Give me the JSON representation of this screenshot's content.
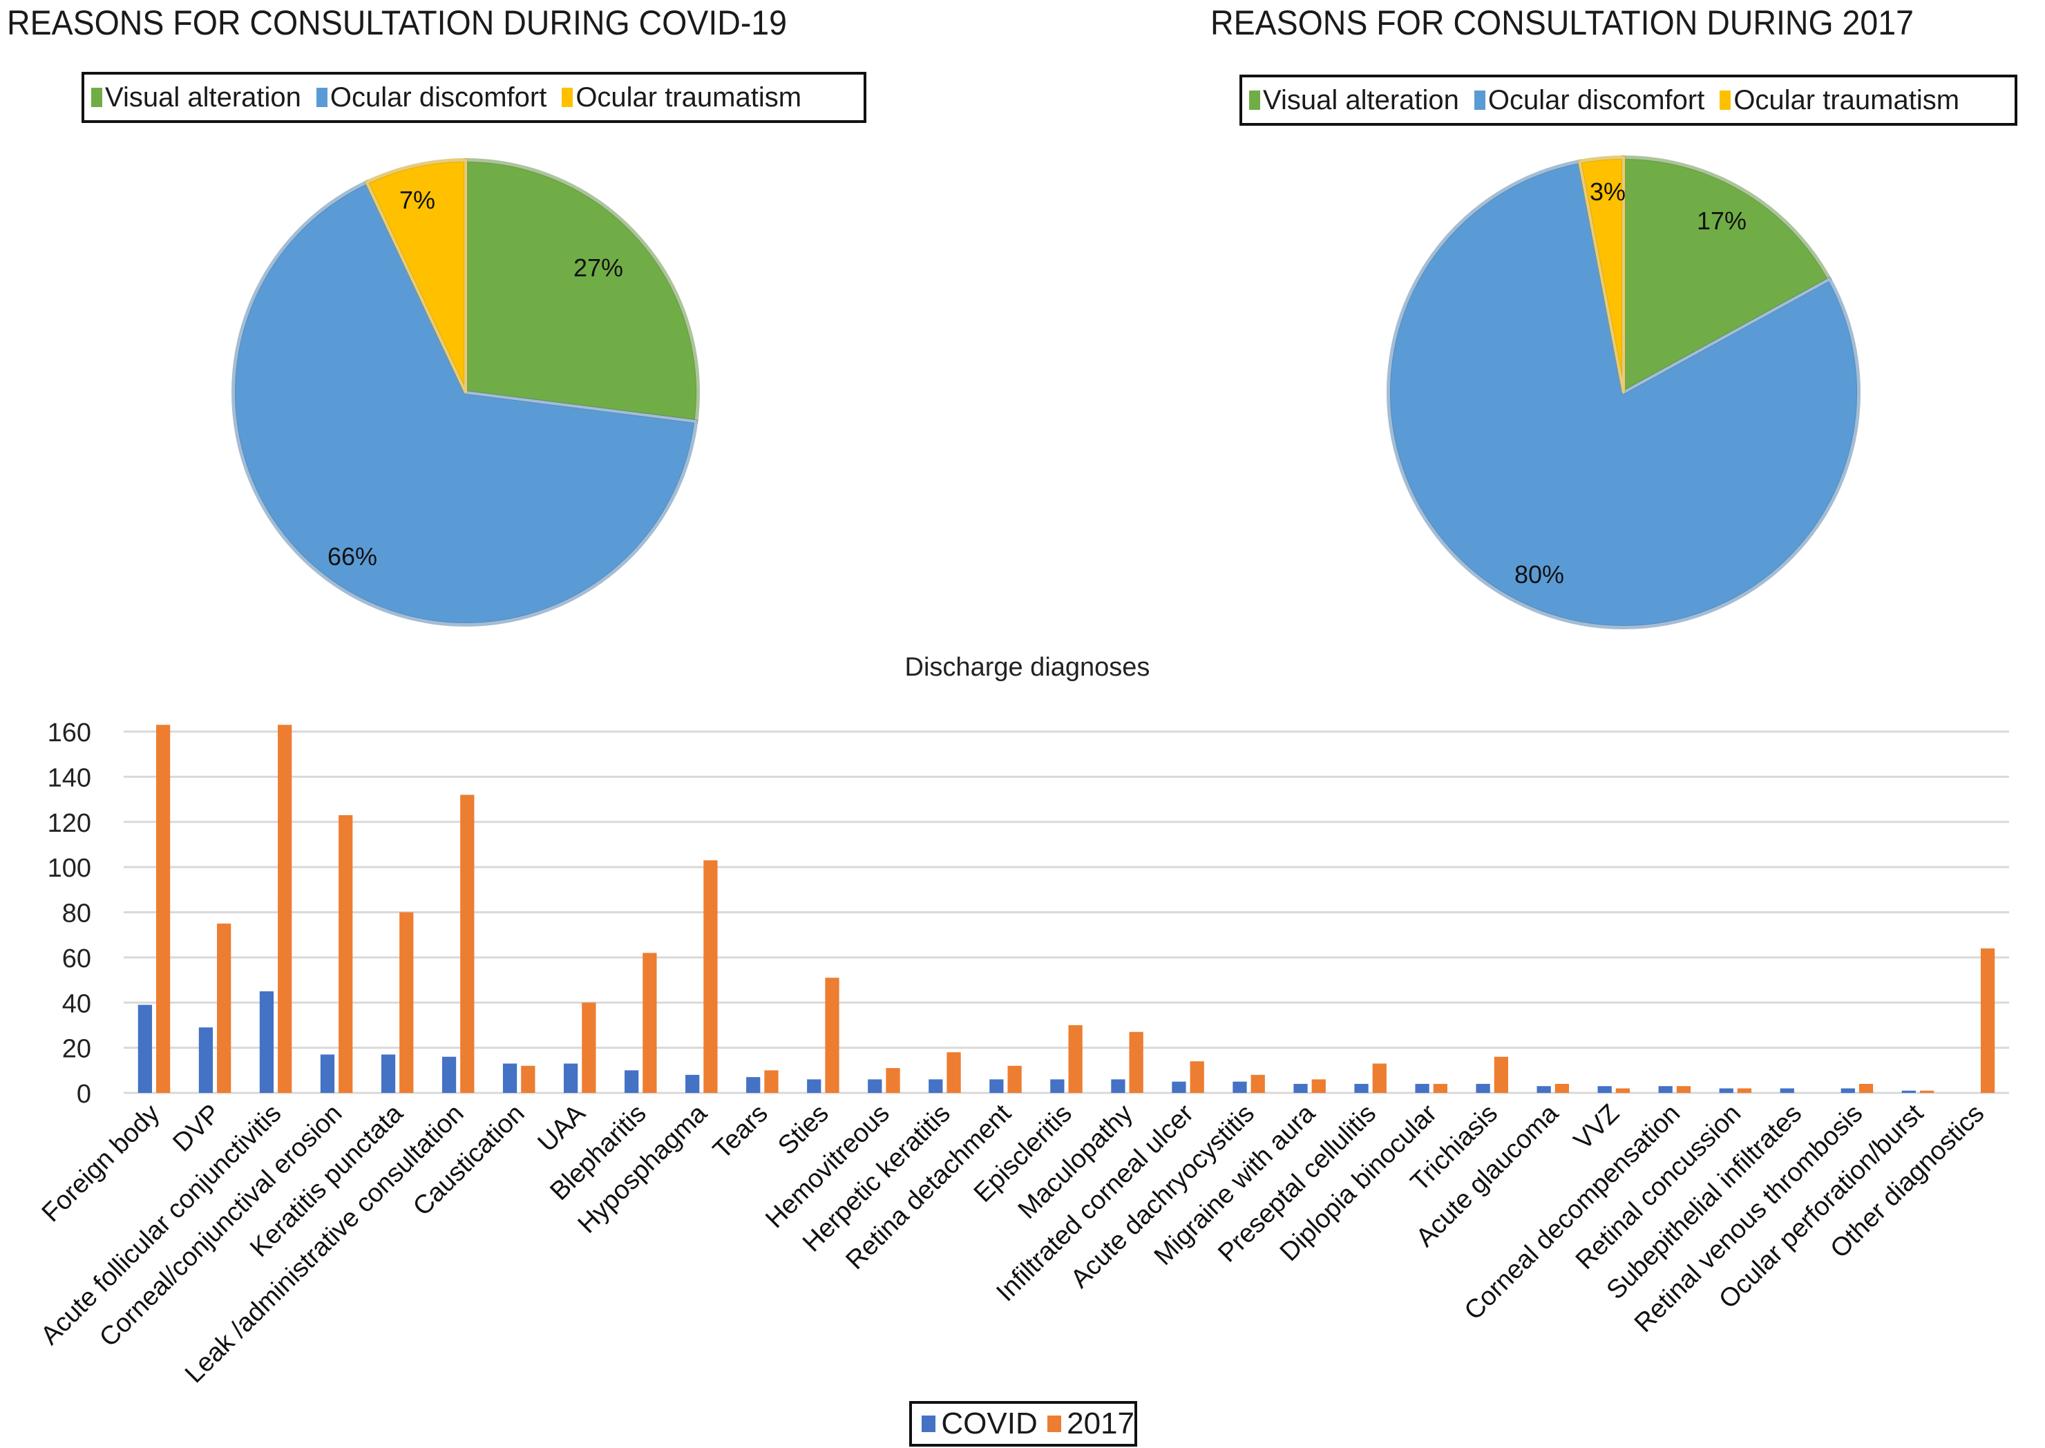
{
  "chart_data": [
    {
      "type": "pie",
      "title": "REASONS FOR CONSULTATION DURING  COVID-19",
      "legend_position": "top",
      "slices": [
        {
          "label": "Visual alteration",
          "value": 27,
          "display": "27%",
          "color": "#70ad47"
        },
        {
          "label": "Ocular discomfort",
          "value": 66,
          "display": "66%",
          "color": "#5b9bd5"
        },
        {
          "label": "Ocular traumatism",
          "value": 7,
          "display": "7%",
          "color": "#ffc000"
        }
      ]
    },
    {
      "type": "pie",
      "title": "REASONS FOR CONSULTATION DURING 2017",
      "legend_position": "top",
      "slices": [
        {
          "label": "Visual alteration",
          "value": 17,
          "display": "17%",
          "color": "#70ad47"
        },
        {
          "label": "Ocular discomfort",
          "value": 80,
          "display": "80%",
          "color": "#5b9bd5"
        },
        {
          "label": "Ocular traumatism",
          "value": 3,
          "display": "3%",
          "color": "#ffc000"
        }
      ]
    },
    {
      "type": "bar",
      "title": "Discharge diagnoses",
      "xlabel": "",
      "ylabel": "",
      "ylim": [
        0,
        160
      ],
      "yticks": [
        0,
        20,
        40,
        60,
        80,
        100,
        120,
        140,
        160
      ],
      "grid": true,
      "legend_position": "bottom",
      "categories": [
        "Foreign body",
        "DVP",
        "Acute follicular conjunctivitis",
        "Corneal/conjunctival erosion",
        "Keratitis punctata",
        "Leak /administrative consultation",
        "Caustication",
        "UAA",
        "Blepharitis",
        "Hyposphagma",
        "Tears",
        "Sties",
        "Hemovitreous",
        "Herpetic keratitis",
        "Retina detachment",
        "Episcleritis",
        "Maculopathy",
        "Infiltrated corneal ulcer",
        "Acute dachryocystitis",
        "Migraine with aura",
        "Preseptal cellulitis",
        "Diplopia binocular",
        "Trichiasis",
        "Acute glaucoma",
        "VVZ",
        "Corneal decompensation",
        "Retinal concussion",
        "Subepithelial infiltrates",
        "Retinal venous thrombosis",
        "Ocular perforation/burst",
        "Other diagnostics"
      ],
      "series": [
        {
          "name": "COVID",
          "color": "#4472c4",
          "values": [
            39,
            29,
            45,
            17,
            17,
            16,
            13,
            13,
            10,
            8,
            7,
            6,
            6,
            6,
            6,
            6,
            6,
            5,
            5,
            4,
            4,
            4,
            4,
            3,
            3,
            3,
            2,
            2,
            2,
            1,
            0
          ]
        },
        {
          "name": "2017",
          "color": "#ed7d31",
          "values": [
            163,
            75,
            163,
            123,
            80,
            132,
            12,
            40,
            62,
            103,
            10,
            51,
            11,
            18,
            12,
            30,
            27,
            14,
            8,
            6,
            13,
            4,
            16,
            4,
            2,
            3,
            2,
            0,
            4,
            1,
            64
          ]
        }
      ]
    }
  ]
}
